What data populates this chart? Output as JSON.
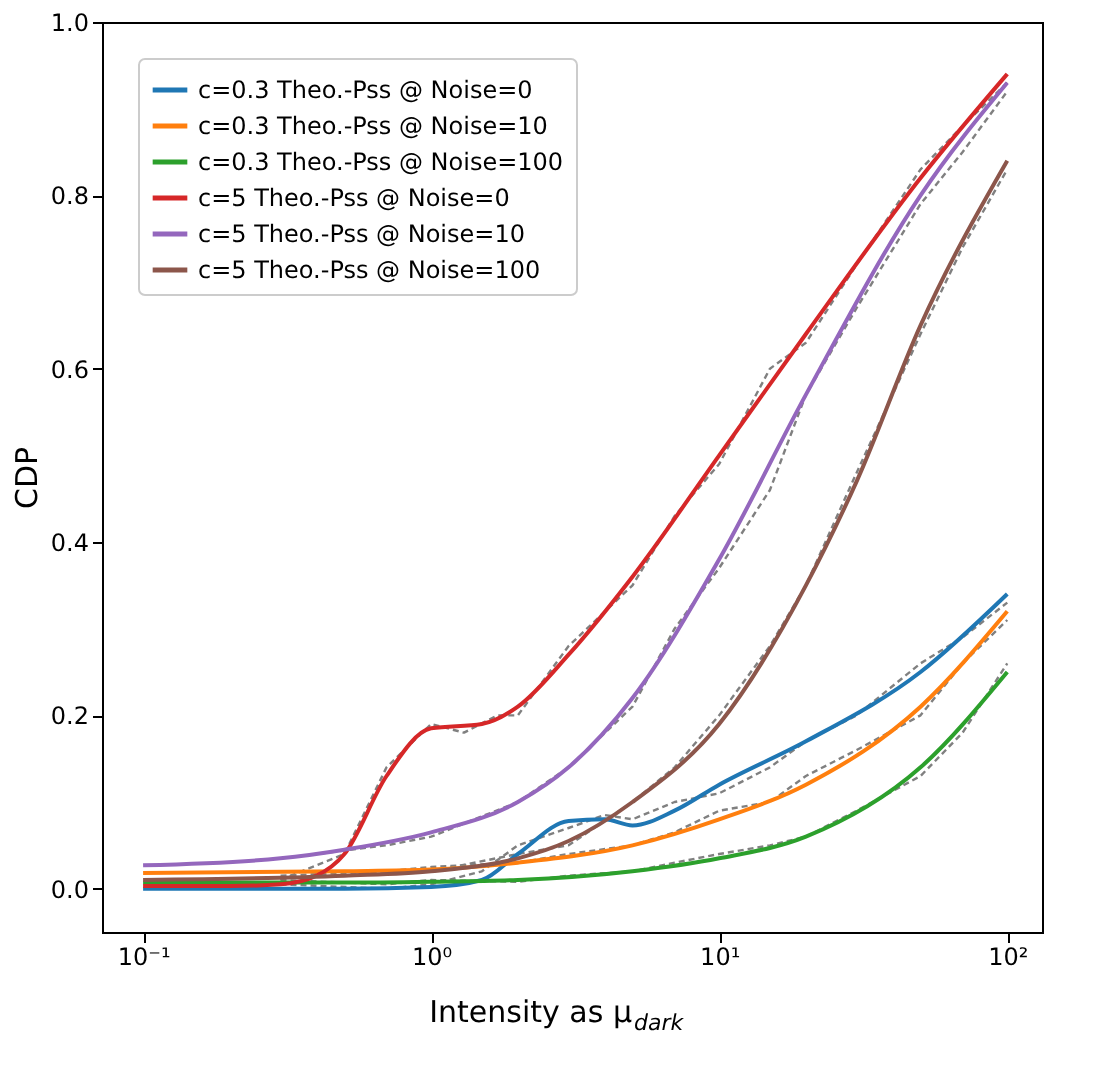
{
  "chart_data": {
    "type": "line",
    "xlabel": "Intensity as μ$_{dark}$",
    "ylabel": "CDP",
    "log": "x",
    "legend": "top left",
    "grid": false,
    "xlim": [
      0.072,
      132
    ],
    "xticks": [
      {
        "value": 0.1,
        "label": "10⁻¹"
      },
      {
        "value": 1,
        "label": "10⁰"
      },
      {
        "value": 10,
        "label": "10¹"
      },
      {
        "value": 100,
        "label": "10²"
      }
    ],
    "ylim": [
      -0.05,
      1.0
    ],
    "yticks": [
      {
        "value": 0,
        "label": "0.0"
      },
      {
        "value": 0.2,
        "label": "0.2"
      },
      {
        "value": 0.4,
        "label": "0.4"
      },
      {
        "value": 0.6,
        "label": "0.6"
      },
      {
        "value": 0.8,
        "label": "0.8"
      },
      {
        "value": 1.0,
        "label": "1.0"
      }
    ],
    "series": [
      {
        "name": "c=0.3 Theo.-Pss @ Noise=0",
        "color": "#1f77b4",
        "line_style": "solid",
        "x": [
          0.1,
          0.5,
          1,
          1.5,
          2,
          3,
          4,
          5,
          7,
          10,
          20,
          50,
          100
        ],
        "values": [
          0.0,
          0.0,
          0.002,
          0.01,
          0.04,
          0.078,
          0.08,
          0.073,
          0.09,
          0.12,
          0.17,
          0.25,
          0.34
        ]
      },
      {
        "name": "c=0.3 Theo.-Pss @ Noise=10",
        "color": "#ff7f0e",
        "line_style": "solid",
        "x": [
          0.1,
          0.5,
          1,
          2,
          5,
          10,
          20,
          50,
          100
        ],
        "values": [
          0.018,
          0.02,
          0.022,
          0.03,
          0.05,
          0.08,
          0.12,
          0.21,
          0.32
        ]
      },
      {
        "name": "c=0.3 Theo.-Pss @ Noise=100",
        "color": "#2ca02c",
        "line_style": "solid",
        "x": [
          0.1,
          0.5,
          1,
          2,
          5,
          10,
          20,
          50,
          100
        ],
        "values": [
          0.007,
          0.007,
          0.008,
          0.01,
          0.02,
          0.035,
          0.06,
          0.14,
          0.25
        ]
      },
      {
        "name": "c=5 Theo.-Pss @ Noise=0",
        "color": "#d62728",
        "line_style": "solid",
        "x": [
          0.1,
          0.2,
          0.3,
          0.4,
          0.5,
          0.7,
          1,
          1.5,
          2,
          3,
          5,
          10,
          20,
          50,
          100
        ],
        "values": [
          0.003,
          0.003,
          0.005,
          0.015,
          0.04,
          0.13,
          0.185,
          0.19,
          0.21,
          0.27,
          0.36,
          0.5,
          0.64,
          0.82,
          0.94
        ]
      },
      {
        "name": "c=5 Theo.-Pss @ Noise=10",
        "color": "#9467bd",
        "line_style": "solid",
        "x": [
          0.1,
          0.3,
          0.5,
          1,
          2,
          3,
          5,
          10,
          20,
          50,
          100
        ],
        "values": [
          0.027,
          0.035,
          0.045,
          0.065,
          0.1,
          0.14,
          0.22,
          0.38,
          0.57,
          0.8,
          0.93
        ]
      },
      {
        "name": "c=5 Theo.-Pss @ Noise=100",
        "color": "#8c564b",
        "line_style": "solid",
        "x": [
          0.1,
          0.5,
          1,
          2,
          3,
          5,
          10,
          20,
          30,
          50,
          100
        ],
        "values": [
          0.01,
          0.015,
          0.02,
          0.035,
          0.055,
          0.1,
          0.19,
          0.35,
          0.47,
          0.65,
          0.84
        ]
      },
      {
        "color": "#808080",
        "line_style": "dashed",
        "x": [
          0.3,
          0.7,
          1,
          1.5,
          2,
          3,
          4,
          5,
          7,
          10,
          15,
          20,
          30,
          50,
          70,
          100
        ],
        "values": [
          0.005,
          0.0,
          0.005,
          0.02,
          0.05,
          0.07,
          0.085,
          0.08,
          0.1,
          0.11,
          0.14,
          0.17,
          0.2,
          0.26,
          0.29,
          0.33
        ]
      },
      {
        "color": "#808080",
        "line_style": "dashed",
        "x": [
          0.3,
          0.7,
          1,
          2,
          3,
          5,
          7,
          10,
          15,
          20,
          30,
          50,
          70,
          100
        ],
        "values": [
          0.02,
          0.02,
          0.025,
          0.03,
          0.04,
          0.05,
          0.065,
          0.09,
          0.1,
          0.13,
          0.16,
          0.2,
          0.26,
          0.31
        ]
      },
      {
        "color": "#808080",
        "line_style": "dashed",
        "x": [
          0.3,
          0.7,
          1,
          2,
          3,
          5,
          7,
          10,
          15,
          20,
          30,
          50,
          70,
          100
        ],
        "values": [
          0.01,
          0.005,
          0.01,
          0.008,
          0.015,
          0.02,
          0.03,
          0.04,
          0.05,
          0.06,
          0.09,
          0.13,
          0.18,
          0.26
        ]
      },
      {
        "color": "#808080",
        "line_style": "dashed",
        "x": [
          0.3,
          0.5,
          0.7,
          1,
          1.3,
          1.7,
          2,
          3,
          5,
          7,
          10,
          15,
          20,
          30,
          50,
          70,
          100
        ],
        "values": [
          0.01,
          0.04,
          0.14,
          0.19,
          0.18,
          0.2,
          0.2,
          0.28,
          0.35,
          0.43,
          0.49,
          0.6,
          0.63,
          0.72,
          0.83,
          0.88,
          0.93
        ]
      },
      {
        "color": "#808080",
        "line_style": "dashed",
        "x": [
          0.3,
          0.7,
          1,
          2,
          3,
          5,
          7,
          10,
          15,
          20,
          30,
          50,
          70,
          100
        ],
        "values": [
          0.035,
          0.05,
          0.06,
          0.1,
          0.14,
          0.21,
          0.3,
          0.37,
          0.46,
          0.57,
          0.67,
          0.79,
          0.85,
          0.92
        ]
      },
      {
        "color": "#808080",
        "line_style": "dashed",
        "x": [
          0.3,
          0.7,
          1,
          2,
          3,
          5,
          7,
          10,
          15,
          20,
          30,
          50,
          70,
          100
        ],
        "values": [
          0.015,
          0.02,
          0.02,
          0.04,
          0.05,
          0.1,
          0.14,
          0.2,
          0.28,
          0.35,
          0.48,
          0.64,
          0.74,
          0.83
        ]
      }
    ]
  }
}
